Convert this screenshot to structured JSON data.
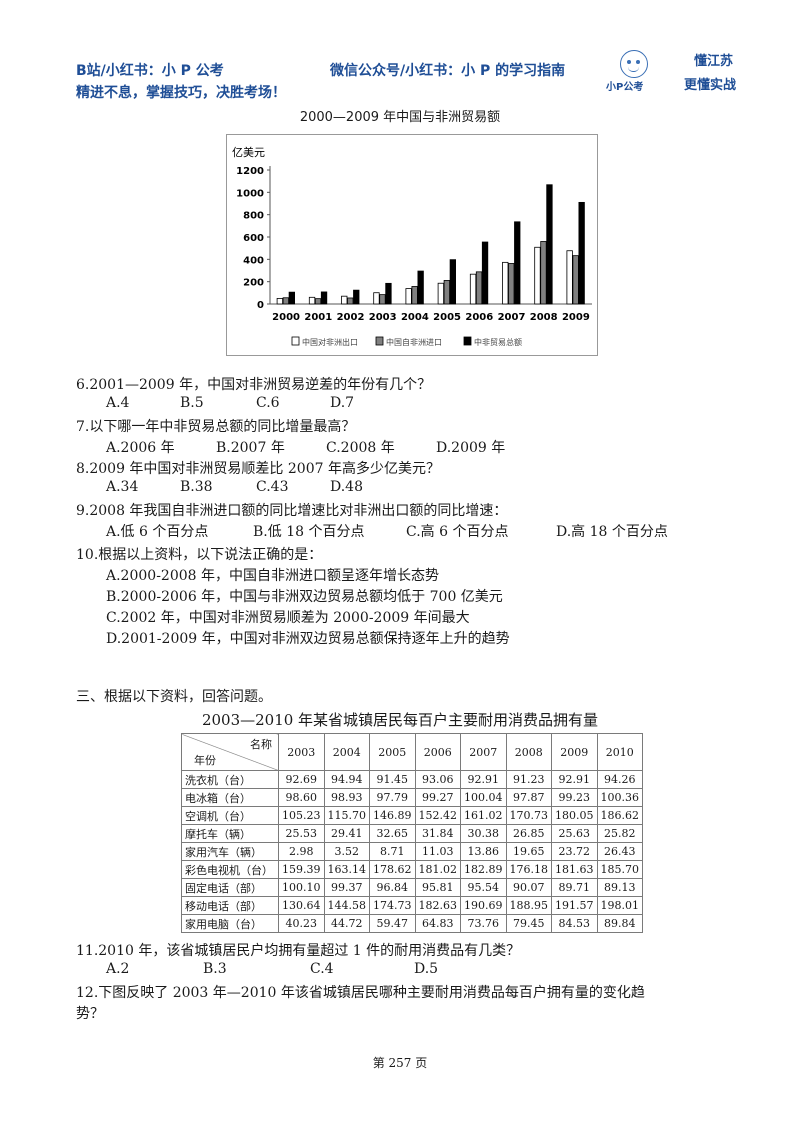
{
  "header": {
    "line1_left": "B站/小红书：小 P 公考",
    "line1_right": "微信公众号/小红书：小 P 的学习指南",
    "line2": "精进不息，掌握技巧，决胜考场！",
    "logo_sub": "小P公考",
    "logo_right_1": "懂江苏",
    "logo_right_2": "更懂实战",
    "brand_color": "#1f4e96"
  },
  "chart_data": {
    "type": "bar",
    "title": "2000—2009 年中国与非洲贸易额",
    "ylabel": "亿美元",
    "ylim": [
      0,
      1200
    ],
    "yticks": [
      "0",
      "200",
      "400",
      "600",
      "800",
      "1000",
      "1200"
    ],
    "grid": false,
    "legend_position": "bottom",
    "categories": [
      "2000",
      "2001",
      "2002",
      "2003",
      "2004",
      "2005",
      "2006",
      "2007",
      "2008",
      "2009"
    ],
    "series": [
      {
        "name": "中国对非洲出口",
        "color": "#ffffff",
        "values": [
          50,
          60,
          70,
          101,
          138,
          186,
          267,
          373,
          508,
          477
        ]
      },
      {
        "name": "中国自非洲进口",
        "color": "#808080",
        "values": [
          56,
          48,
          54,
          84,
          157,
          211,
          288,
          363,
          560,
          433
        ]
      },
      {
        "name": "中非贸易总额",
        "color": "#000000",
        "values": [
          106,
          108,
          124,
          185,
          295,
          397,
          555,
          736,
          1068,
          910
        ]
      }
    ]
  },
  "questions_a": [
    {
      "q": "6.2001—2009 年，中国对非洲贸易逆差的年份有几个？",
      "options": [
        "A.4",
        "B.5",
        "C.6",
        "D.7"
      ]
    },
    {
      "q": "7.以下哪一年中非贸易总额的同比增量最高？",
      "options": [
        "A.2006 年",
        "B.2007 年",
        "C.2008 年",
        "D.2009 年"
      ]
    },
    {
      "q": "8.2009 年中国对非洲贸易顺差比 2007 年高多少亿美元？",
      "options": [
        "A.34",
        "B.38",
        "C.43",
        "D.48"
      ]
    },
    {
      "q": "9.2008 年我国自非洲进口额的同比增速比对非洲出口额的同比增速：",
      "options": [
        "A.低 6 个百分点",
        "B.低 18 个百分点",
        "C.高 6 个百分点",
        "D.高 18 个百分点"
      ]
    },
    {
      "q": "10.根据以上资料，以下说法正确的是：",
      "options": [
        "A.2000-2008 年，中国自非洲进口额呈逐年增长态势",
        "B.2000-2006 年，中国与非洲双边贸易总额均低于 700 亿美元",
        "C.2002 年，中国对非洲贸易顺差为 2000-2009 年间最大",
        "D.2001-2009 年，中国对非洲双边贸易总额保持逐年上升的趋势"
      ]
    }
  ],
  "section3": {
    "intro": "三、根据以下资料，回答问题。",
    "table_title": "2003—2010 年某省城镇居民每百户主要耐用消费品拥有量",
    "corner_top": "名称",
    "corner_bottom": "年份",
    "years": [
      "2003",
      "2004",
      "2005",
      "2006",
      "2007",
      "2008",
      "2009",
      "2010"
    ],
    "rows": [
      {
        "name": "洗衣机（台）",
        "values": [
          "92.69",
          "94.94",
          "91.45",
          "93.06",
          "92.91",
          "91.23",
          "92.91",
          "94.26"
        ]
      },
      {
        "name": "电冰箱（台）",
        "values": [
          "98.60",
          "98.93",
          "97.79",
          "99.27",
          "100.04",
          "97.87",
          "99.23",
          "100.36"
        ]
      },
      {
        "name": "空调机（台）",
        "values": [
          "105.23",
          "115.70",
          "146.89",
          "152.42",
          "161.02",
          "170.73",
          "180.05",
          "186.62"
        ]
      },
      {
        "name": "摩托车（辆）",
        "values": [
          "25.53",
          "29.41",
          "32.65",
          "31.84",
          "30.38",
          "26.85",
          "25.63",
          "25.82"
        ]
      },
      {
        "name": "家用汽车（辆）",
        "values": [
          "2.98",
          "3.52",
          "8.71",
          "11.03",
          "13.86",
          "19.65",
          "23.72",
          "26.43"
        ]
      },
      {
        "name": "彩色电视机（台）",
        "values": [
          "159.39",
          "163.14",
          "178.62",
          "181.02",
          "182.89",
          "176.18",
          "181.63",
          "185.70"
        ]
      },
      {
        "name": "固定电话（部）",
        "values": [
          "100.10",
          "99.37",
          "96.84",
          "95.81",
          "95.54",
          "90.07",
          "89.71",
          "89.13"
        ]
      },
      {
        "name": "移动电话（部）",
        "values": [
          "130.64",
          "144.58",
          "174.73",
          "182.63",
          "190.69",
          "188.95",
          "191.57",
          "198.01"
        ]
      },
      {
        "name": "家用电脑（台）",
        "values": [
          "40.23",
          "44.72",
          "59.47",
          "64.83",
          "73.76",
          "79.45",
          "84.53",
          "89.84"
        ]
      }
    ]
  },
  "questions_b": [
    {
      "q": "11.2010 年，该省城镇居民户均拥有量超过 1 件的耐用消费品有几类？",
      "options": [
        "A.2",
        "B.3",
        "C.4",
        "D.5"
      ]
    },
    {
      "q": "12.下图反映了 2003 年—2010 年该省城镇居民哪种主要耐用消费品每百户拥有量的变化趋",
      "cont": "势？"
    }
  ],
  "footer": "第 257 页"
}
